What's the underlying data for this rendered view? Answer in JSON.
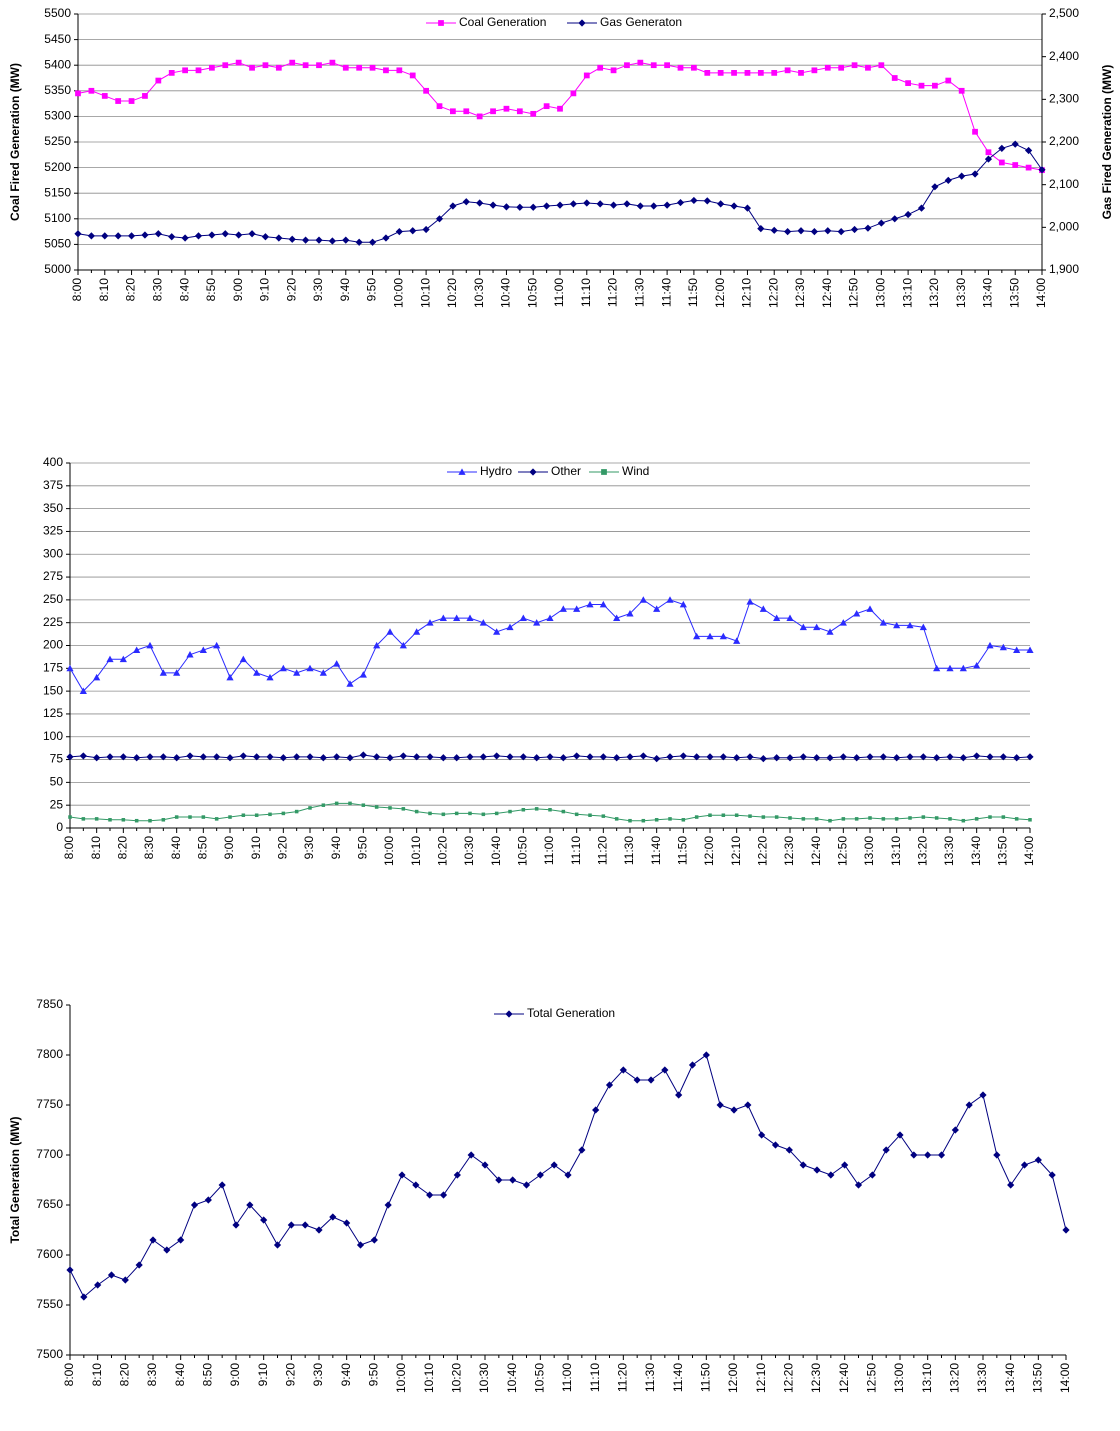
{
  "chart_data": [
    {
      "type": "line",
      "categories": [
        "8:00",
        null,
        "8:10",
        null,
        "8:20",
        null,
        "8:30",
        null,
        "8:40",
        null,
        "8:50",
        null,
        "9:00",
        null,
        "9:10",
        null,
        "9:20",
        null,
        "9:30",
        null,
        "9:40",
        null,
        "9:50",
        null,
        "10:00",
        null,
        "10:10",
        null,
        "10:20",
        null,
        "10:30",
        null,
        "10:40",
        null,
        "10:50",
        null,
        "11:00",
        null,
        "11:10",
        null,
        "11:20",
        null,
        "11:30",
        null,
        "11:40",
        null,
        "11:50",
        null,
        "12:00",
        null,
        "12:10",
        null,
        "12:20",
        null,
        "12:30",
        null,
        "12:40",
        null,
        "12:50",
        null,
        "13:00",
        null,
        "13:10",
        null,
        "13:20",
        null,
        "13:30",
        null,
        "13:40",
        null,
        "13:50",
        null,
        "14:00"
      ],
      "ylabel": "Coal Fired Generation (MW)",
      "y2label": "Gas Fired Generation (MW)",
      "ylim": [
        5000,
        5500
      ],
      "yticks": [
        5000,
        5050,
        5100,
        5150,
        5200,
        5250,
        5300,
        5350,
        5400,
        5450,
        5500
      ],
      "y2lim": [
        1900,
        2500
      ],
      "y2ticks": [
        {
          "value": 1900,
          "label": "1,900"
        },
        {
          "value": 2000,
          "label": "2,000"
        },
        {
          "value": 2100,
          "label": "2,100"
        },
        {
          "value": 2200,
          "label": "2,200"
        },
        {
          "value": 2300,
          "label": "2,300"
        },
        {
          "value": 2400,
          "label": "2,400"
        },
        {
          "value": 2500,
          "label": "2,500"
        }
      ],
      "grid": true,
      "legend": "top",
      "series": [
        {
          "name": "Coal Generation",
          "color": "#ff00ff",
          "marker": "square",
          "values": [
            5345,
            5350,
            5340,
            5330,
            5330,
            5340,
            5370,
            5385,
            5390,
            5390,
            5395,
            5400,
            5405,
            5395,
            5400,
            5395,
            5405,
            5400,
            5400,
            5405,
            5395,
            5395,
            5395,
            5390,
            5390,
            5380,
            5350,
            5320,
            5310,
            5310,
            5300,
            5310,
            5315,
            5310,
            5305,
            5320,
            5315,
            5345,
            5380,
            5395,
            5390,
            5400,
            5405,
            5400,
            5400,
            5395,
            5395,
            5385,
            5385,
            5385,
            5385,
            5385,
            5385,
            5390,
            5385,
            5390,
            5395,
            5395,
            5400,
            5395,
            5400,
            5375,
            5365,
            5360,
            5360,
            5370,
            5350,
            5270,
            5230,
            5210,
            5205,
            5200,
            5195
          ]
        },
        {
          "name": "Gas Generaton",
          "color": "#000080",
          "marker": "diamond",
          "axis": "y2",
          "values": [
            1985,
            1980,
            1980,
            1980,
            1980,
            1982,
            1985,
            1978,
            1975,
            1980,
            1982,
            1985,
            1982,
            1985,
            1978,
            1975,
            1972,
            1970,
            1970,
            1968,
            1970,
            1965,
            1965,
            1975,
            1990,
            1992,
            1995,
            2020,
            2050,
            2060,
            2057,
            2052,
            2048,
            2047,
            2047,
            2050,
            2052,
            2055,
            2057,
            2055,
            2052,
            2055,
            2050,
            2050,
            2052,
            2058,
            2063,
            2062,
            2055,
            2050,
            2045,
            1997,
            1993,
            1990,
            1992,
            1990,
            1992,
            1990,
            1995,
            1998,
            2010,
            2020,
            2030,
            2045,
            2095,
            2110,
            2120,
            2125,
            2160,
            2185,
            2195,
            2180,
            2135
          ]
        }
      ]
    },
    {
      "type": "line",
      "categories": [
        "8:00",
        null,
        "8:10",
        null,
        "8:20",
        null,
        "8:30",
        null,
        "8:40",
        null,
        "8:50",
        null,
        "9:00",
        null,
        "9:10",
        null,
        "9:20",
        null,
        "9:30",
        null,
        "9:40",
        null,
        "9:50",
        null,
        "10:00",
        null,
        "10:10",
        null,
        "10:20",
        null,
        "10:30",
        null,
        "10:40",
        null,
        "10:50",
        null,
        "11:00",
        null,
        "11:10",
        null,
        "11:20",
        null,
        "11:30",
        null,
        "11:40",
        null,
        "11:50",
        null,
        "12:00",
        null,
        "12:10",
        null,
        "12:20",
        null,
        "12:30",
        null,
        "12:40",
        null,
        "12:50",
        null,
        "13:00",
        null,
        "13:10",
        null,
        "13:20",
        null,
        "13:30",
        null,
        "13:40",
        null,
        "13:50",
        null,
        "14:00"
      ],
      "ylim": [
        0,
        400
      ],
      "yticks": [
        0,
        25,
        50,
        75,
        100,
        125,
        150,
        175,
        200,
        225,
        250,
        275,
        300,
        325,
        350,
        375,
        400
      ],
      "grid": true,
      "legend": "top",
      "series": [
        {
          "name": "Hydro",
          "color": "#2b2bff",
          "marker": "triangle",
          "values": [
            175,
            150,
            165,
            185,
            185,
            195,
            200,
            170,
            170,
            190,
            195,
            200,
            165,
            185,
            170,
            165,
            175,
            170,
            175,
            170,
            180,
            158,
            168,
            200,
            215,
            200,
            215,
            225,
            230,
            230,
            230,
            225,
            215,
            220,
            230,
            225,
            230,
            240,
            240,
            245,
            245,
            230,
            235,
            250,
            240,
            250,
            245,
            210,
            210,
            210,
            205,
            248,
            240,
            230,
            230,
            220,
            220,
            215,
            225,
            235,
            240,
            225,
            222,
            222,
            220,
            175,
            175,
            175,
            178,
            200,
            198,
            195,
            195
          ]
        },
        {
          "name": "Other",
          "color": "#000080",
          "marker": "diamond",
          "values": [
            78,
            79,
            77,
            78,
            78,
            77,
            78,
            78,
            77,
            79,
            78,
            78,
            77,
            79,
            78,
            78,
            77,
            78,
            78,
            77,
            78,
            77,
            80,
            78,
            77,
            79,
            78,
            78,
            77,
            77,
            78,
            78,
            79,
            78,
            78,
            77,
            78,
            77,
            79,
            78,
            78,
            77,
            78,
            79,
            76,
            78,
            79,
            78,
            78,
            78,
            77,
            78,
            76,
            77,
            77,
            78,
            77,
            77,
            78,
            77,
            78,
            78,
            77,
            78,
            78,
            77,
            78,
            77,
            79,
            78,
            78,
            77,
            78
          ]
        },
        {
          "name": "Wind",
          "color": "#339966",
          "marker": "square",
          "values": [
            12,
            10,
            10,
            9,
            9,
            8,
            8,
            9,
            12,
            12,
            12,
            10,
            12,
            14,
            14,
            15,
            16,
            18,
            22,
            25,
            27,
            27,
            25,
            23,
            22,
            21,
            18,
            16,
            15,
            16,
            16,
            15,
            16,
            18,
            20,
            21,
            20,
            18,
            15,
            14,
            13,
            10,
            8,
            8,
            9,
            10,
            9,
            12,
            14,
            14,
            14,
            13,
            12,
            12,
            11,
            10,
            10,
            8,
            10,
            10,
            11,
            10,
            10,
            11,
            12,
            11,
            10,
            8,
            10,
            12,
            12,
            10,
            9
          ]
        }
      ]
    },
    {
      "type": "line",
      "categories": [
        "8:00",
        null,
        "8:10",
        null,
        "8:20",
        null,
        "8:30",
        null,
        "8:40",
        null,
        "8:50",
        null,
        "9:00",
        null,
        "9:10",
        null,
        "9:20",
        null,
        "9:30",
        null,
        "9:40",
        null,
        "9:50",
        null,
        "10:00",
        null,
        "10:10",
        null,
        "10:20",
        null,
        "10:30",
        null,
        "10:40",
        null,
        "10:50",
        null,
        "11:00",
        null,
        "11:10",
        null,
        "11:20",
        null,
        "11:30",
        null,
        "11:40",
        null,
        "11:50",
        null,
        "12:00",
        null,
        "12:10",
        null,
        "12:20",
        null,
        "12:30",
        null,
        "12:40",
        null,
        "12:50",
        null,
        "13:00",
        null,
        "13:10",
        null,
        "13:20",
        null,
        "13:30",
        null,
        "13:40",
        null,
        "13:50",
        null,
        "14:00"
      ],
      "ylabel": "Total Generation (MW)",
      "ylim": [
        7500,
        7850
      ],
      "yticks": [
        7500,
        7550,
        7600,
        7650,
        7700,
        7750,
        7800,
        7850
      ],
      "grid": false,
      "legend": "top",
      "series": [
        {
          "name": "Total Generation",
          "color": "#000080",
          "marker": "diamond",
          "values": [
            7585,
            7558,
            7570,
            7580,
            7575,
            7590,
            7615,
            7605,
            7615,
            7650,
            7655,
            7670,
            7630,
            7650,
            7635,
            7610,
            7630,
            7630,
            7625,
            7638,
            7632,
            7610,
            7615,
            7650,
            7680,
            7670,
            7660,
            7660,
            7680,
            7700,
            7690,
            7675,
            7675,
            7670,
            7680,
            7690,
            7680,
            7705,
            7745,
            7770,
            7785,
            7775,
            7775,
            7785,
            7760,
            7790,
            7800,
            7750,
            7745,
            7750,
            7720,
            7710,
            7705,
            7690,
            7685,
            7680,
            7690,
            7670,
            7680,
            7705,
            7720,
            7700,
            7700,
            7700,
            7725,
            7750,
            7760,
            7700,
            7670,
            7690,
            7695,
            7680,
            7625
          ]
        }
      ]
    }
  ]
}
